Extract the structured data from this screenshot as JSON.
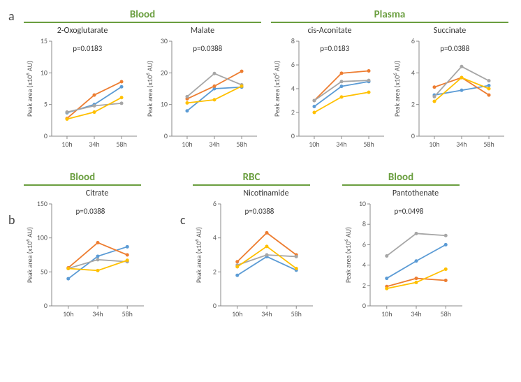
{
  "panels": {
    "a": "a",
    "b": "b",
    "c": "c"
  },
  "section_headers": {
    "blood_a": "Blood",
    "plasma_a": "Plasma",
    "blood_b": "Blood",
    "rbc_c": "RBC",
    "blood_c": "Blood"
  },
  "common": {
    "xticks": [
      "10h",
      "34h",
      "58h"
    ],
    "y_label_base": "Peak area (x10",
    "y_label_exp": "6",
    "y_label_tail": " AU)",
    "colors": {
      "blue": "#5b9bd5",
      "orange": "#ed7d31",
      "grey": "#a6a6a6",
      "yellow": "#ffc000",
      "axis": "#8a8a8a",
      "text": "#595959"
    },
    "fontsize_title": 12,
    "fontsize_axis": 10,
    "fontsize_pval": 11,
    "line_width": 1.8,
    "marker_size": 2.5
  },
  "charts": {
    "oxoglutarate": {
      "title": "2-Oxoglutarate",
      "pval": "p=0.0183",
      "ymin": 0,
      "ymax": 15,
      "ystep": 5,
      "series": {
        "blue": [
          3.7,
          5.0,
          7.8
        ],
        "orange": [
          2.8,
          6.5,
          8.6
        ],
        "grey": [
          3.8,
          4.8,
          5.2
        ],
        "yellow": [
          2.7,
          3.8,
          6.1
        ]
      }
    },
    "malate": {
      "title": "Malate",
      "pval": "p=0.0388",
      "ymin": 0,
      "ymax": 30,
      "ystep": 10,
      "series": {
        "blue": [
          8.0,
          15.0,
          15.5
        ],
        "orange": [
          11.8,
          15.8,
          20.5
        ],
        "grey": [
          12.5,
          19.8,
          16.2
        ],
        "yellow": [
          10.5,
          11.5,
          15.8
        ]
      }
    },
    "cisaconitate": {
      "title": "cis-Aconitate",
      "pval": "p=0.0183",
      "ymin": 0,
      "ymax": 8,
      "ystep": 2,
      "series": {
        "blue": [
          2.5,
          4.2,
          4.6
        ],
        "orange": [
          3.0,
          5.3,
          5.5
        ],
        "grey": [
          3.0,
          4.6,
          4.7
        ],
        "yellow": [
          2.0,
          3.3,
          3.7
        ]
      }
    },
    "succinate": {
      "title": "Succinate",
      "pval": "p=0.0388",
      "ymin": 0,
      "ymax": 6,
      "ystep": 2,
      "series": {
        "blue": [
          2.6,
          2.9,
          3.2
        ],
        "orange": [
          3.1,
          3.7,
          2.6
        ],
        "grey": [
          2.5,
          4.4,
          3.5
        ],
        "yellow": [
          2.2,
          3.7,
          3.0
        ]
      }
    },
    "citrate": {
      "title": "Citrate",
      "pval": "p=0.0388",
      "ymin": 0,
      "ymax": 150,
      "ystep": 50,
      "series": {
        "blue": [
          40,
          73,
          87
        ],
        "orange": [
          56,
          93,
          75
        ],
        "grey": [
          55,
          68,
          65
        ],
        "yellow": [
          55,
          52,
          67
        ]
      }
    },
    "nicotinamide": {
      "title": "Nicotinamide",
      "pval": "p=0.0388",
      "ymin": 0,
      "ymax": 6,
      "ystep": 2,
      "series": {
        "blue": [
          1.8,
          2.9,
          2.1
        ],
        "orange": [
          2.6,
          4.3,
          3.0
        ],
        "grey": [
          2.4,
          3.0,
          2.9
        ],
        "yellow": [
          2.3,
          3.5,
          2.2
        ]
      }
    },
    "pantothenate": {
      "title": "Pantothenate",
      "pval": "p=0.0498",
      "ymin": 0,
      "ymax": 10,
      "ystep": 2,
      "series": {
        "blue": [
          2.7,
          4.4,
          6.0
        ],
        "orange": [
          1.9,
          2.7,
          2.5
        ],
        "grey": [
          4.9,
          7.1,
          6.9
        ],
        "yellow": [
          1.7,
          2.3,
          3.6
        ]
      }
    }
  }
}
